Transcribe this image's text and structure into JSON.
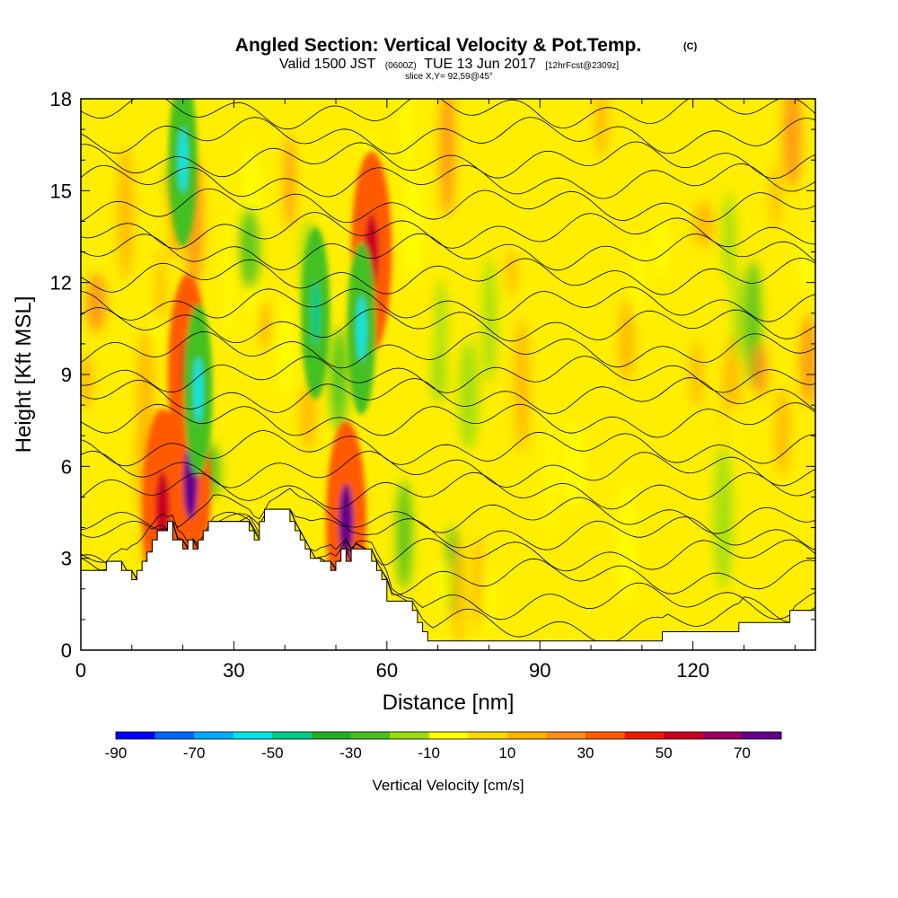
{
  "title": {
    "main": "Angled Section: Vertical Velocity & Pot.Temp.",
    "unit_tag": "(C)",
    "valid_prefix": "Valid 1500 JST",
    "valid_zulu": "(0600Z)",
    "valid_date": "TUE 13 Jun 2017",
    "forecast_tag": "[12hrFcst@2309z]",
    "slice": "slice X,Y= 92,59@45°"
  },
  "chart_data": {
    "type": "heatmap",
    "xlabel": "Distance [nm]",
    "ylabel": "Height [Kft MSL]",
    "xlim": [
      0,
      144
    ],
    "ylim": [
      0,
      18
    ],
    "x_ticks": [
      0,
      30,
      60,
      90,
      120
    ],
    "y_ticks": [
      0,
      3,
      6,
      9,
      12,
      15,
      18
    ],
    "field": "Vertical Velocity",
    "colorbar": {
      "title": "Vertical Velocity [cm/s]",
      "levels": [
        -90,
        -80,
        -70,
        -60,
        -50,
        -40,
        -30,
        -20,
        -10,
        0,
        10,
        20,
        30,
        40,
        50,
        60,
        70,
        80
      ],
      "tick_labels": [
        -90,
        -70,
        -50,
        -30,
        -10,
        10,
        30,
        50,
        70
      ],
      "colors": [
        "#0000ff",
        "#0066ff",
        "#00aaff",
        "#00e6e6",
        "#00cc88",
        "#22b022",
        "#44c022",
        "#99dd11",
        "#ffff00",
        "#ffd800",
        "#ffb400",
        "#ff8c1a",
        "#ff5a00",
        "#ee1a00",
        "#cc0022",
        "#990066",
        "#66008c"
      ]
    },
    "terrain_kft": [
      [
        0,
        2.6
      ],
      [
        3,
        2.6
      ],
      [
        5,
        2.9
      ],
      [
        7,
        2.9
      ],
      [
        8,
        2.6
      ],
      [
        9,
        2.6
      ],
      [
        10,
        2.3
      ],
      [
        11,
        2.6
      ],
      [
        12,
        2.9
      ],
      [
        13,
        3.2
      ],
      [
        14,
        3.6
      ],
      [
        15,
        3.9
      ],
      [
        17,
        4.2
      ],
      [
        18,
        3.6
      ],
      [
        19,
        3.6
      ],
      [
        20,
        3.3
      ],
      [
        21,
        3.6
      ],
      [
        22,
        3.3
      ],
      [
        23,
        3.6
      ],
      [
        24,
        3.9
      ],
      [
        25,
        4.2
      ],
      [
        27,
        4.2
      ],
      [
        30,
        4.2
      ],
      [
        32,
        4.2
      ],
      [
        33,
        3.9
      ],
      [
        34,
        3.6
      ],
      [
        35,
        4.2
      ],
      [
        36,
        4.6
      ],
      [
        38,
        4.6
      ],
      [
        40,
        4.6
      ],
      [
        41,
        4.2
      ],
      [
        42,
        3.9
      ],
      [
        43,
        3.6
      ],
      [
        44,
        3.3
      ],
      [
        45,
        3.0
      ],
      [
        47,
        2.9
      ],
      [
        48,
        2.9
      ],
      [
        49,
        2.6
      ],
      [
        50,
        2.9
      ],
      [
        51,
        3.3
      ],
      [
        52,
        2.9
      ],
      [
        53,
        3.3
      ],
      [
        54,
        3.3
      ],
      [
        56,
        3.3
      ],
      [
        57,
        2.9
      ],
      [
        58,
        2.6
      ],
      [
        59,
        2.3
      ],
      [
        60,
        1.6
      ],
      [
        63,
        1.6
      ],
      [
        65,
        1.3
      ],
      [
        66,
        0.9
      ],
      [
        67,
        0.6
      ],
      [
        68,
        0.3
      ],
      [
        86,
        0.3
      ],
      [
        100,
        0.3
      ],
      [
        113,
        0.3
      ],
      [
        114,
        0.6
      ],
      [
        115,
        0.6
      ],
      [
        128,
        0.6
      ],
      [
        129,
        0.9
      ],
      [
        134,
        0.9
      ],
      [
        138,
        0.9
      ],
      [
        139,
        1.3
      ],
      [
        144,
        1.3
      ]
    ],
    "pot_temp_contours": {
      "baseline_kft": [
        0.6,
        1.6,
        2.4,
        3.1,
        3.8,
        4.4,
        5.2,
        5.9,
        6.6,
        7.5,
        8.3,
        9.0,
        9.8,
        10.6,
        11.3,
        12.2,
        13.0,
        13.7,
        14.5,
        15.3,
        16.0,
        16.8,
        17.6
      ]
    },
    "updraft_cores": [
      {
        "x": 21,
        "y": 9.0,
        "value": 50
      },
      {
        "x": 21.5,
        "y": 5.5,
        "value": 70
      },
      {
        "x": 16,
        "y": 4.6,
        "value": 50
      },
      {
        "x": 52,
        "y": 4.2,
        "value": 70
      },
      {
        "x": 57,
        "y": 13.0,
        "value": 50
      }
    ],
    "downdraft_cores": [
      {
        "x": 20,
        "y": 16.0,
        "value": -60
      },
      {
        "x": 23,
        "y": 8.5,
        "value": -60
      },
      {
        "x": 46,
        "y": 11.0,
        "value": -50
      },
      {
        "x": 55,
        "y": 10.5,
        "value": -60
      }
    ]
  }
}
